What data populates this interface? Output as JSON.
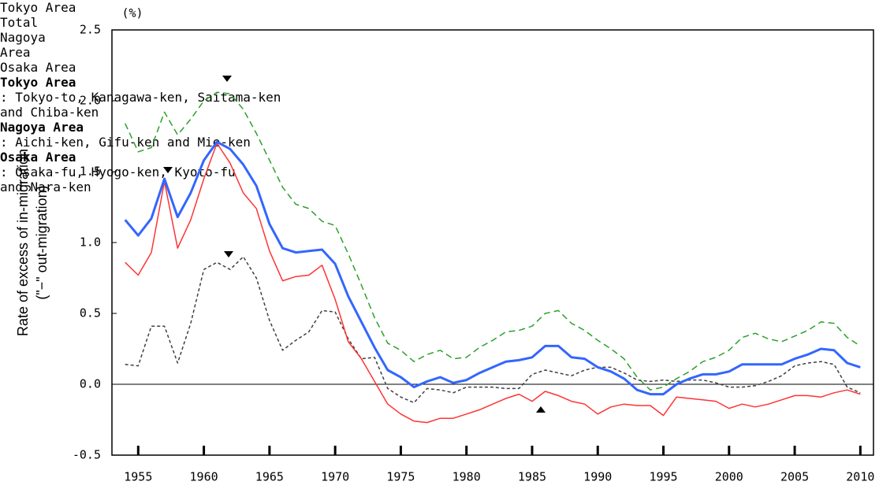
{
  "chart_data": {
    "type": "line",
    "unit_label": "(%)",
    "y_label": [
      "Rate of excess of in-migration",
      "(\"−\" out-migration)"
    ],
    "x": [
      1954,
      1955,
      1956,
      1957,
      1958,
      1959,
      1960,
      1961,
      1962,
      1963,
      1964,
      1965,
      1966,
      1967,
      1968,
      1969,
      1970,
      1971,
      1972,
      1973,
      1974,
      1975,
      1976,
      1977,
      1978,
      1979,
      1980,
      1981,
      1982,
      1983,
      1984,
      1985,
      1986,
      1987,
      1988,
      1989,
      1990,
      1991,
      1992,
      1993,
      1994,
      1995,
      1996,
      1997,
      1998,
      1999,
      2000,
      2001,
      2002,
      2003,
      2004,
      2005,
      2006,
      2007,
      2008,
      2009,
      2010
    ],
    "series": [
      {
        "name": "Tokyo Area",
        "color": "#2ca02c",
        "dash": "8,5",
        "width": 1.5,
        "values": [
          1.84,
          1.64,
          1.67,
          1.92,
          1.76,
          1.87,
          2.0,
          2.06,
          2.05,
          1.94,
          1.77,
          1.58,
          1.39,
          1.27,
          1.24,
          1.15,
          1.12,
          0.92,
          0.7,
          0.47,
          0.29,
          0.24,
          0.16,
          0.21,
          0.24,
          0.18,
          0.19,
          0.26,
          0.31,
          0.37,
          0.38,
          0.41,
          0.5,
          0.52,
          0.43,
          0.38,
          0.31,
          0.25,
          0.18,
          0.05,
          -0.04,
          -0.02,
          0.04,
          0.09,
          0.16,
          0.19,
          0.24,
          0.33,
          0.36,
          0.32,
          0.3,
          0.34,
          0.38,
          0.44,
          0.43,
          0.33,
          0.27
        ]
      },
      {
        "name": "Nagoya Area",
        "color": "#404040",
        "dash": "4,3",
        "width": 1.5,
        "values": [
          0.14,
          0.13,
          0.41,
          0.41,
          0.15,
          0.43,
          0.81,
          0.86,
          0.81,
          0.9,
          0.75,
          0.45,
          0.24,
          0.31,
          0.37,
          0.52,
          0.51,
          0.32,
          0.18,
          0.19,
          -0.03,
          -0.09,
          -0.13,
          -0.03,
          -0.04,
          -0.06,
          -0.02,
          -0.02,
          -0.02,
          -0.03,
          -0.03,
          0.07,
          0.1,
          0.08,
          0.06,
          0.1,
          0.12,
          0.12,
          0.08,
          0.03,
          0.02,
          0.03,
          0.02,
          0.03,
          0.03,
          0.01,
          -0.02,
          -0.02,
          -0.01,
          0.02,
          0.06,
          0.13,
          0.15,
          0.16,
          0.14,
          -0.02,
          -0.06
        ]
      },
      {
        "name": "Osaka Area",
        "color": "#ff3333",
        "dash": "none",
        "width": 1.5,
        "values": [
          0.86,
          0.77,
          0.93,
          1.43,
          0.96,
          1.16,
          1.45,
          1.7,
          1.56,
          1.35,
          1.24,
          0.94,
          0.73,
          0.76,
          0.77,
          0.84,
          0.6,
          0.3,
          0.18,
          0.02,
          -0.14,
          -0.21,
          -0.26,
          -0.27,
          -0.24,
          -0.24,
          -0.21,
          -0.18,
          -0.14,
          -0.1,
          -0.07,
          -0.12,
          -0.05,
          -0.08,
          -0.12,
          -0.14,
          -0.21,
          -0.16,
          -0.14,
          -0.15,
          -0.15,
          -0.22,
          -0.09,
          -0.1,
          -0.11,
          -0.12,
          -0.17,
          -0.14,
          -0.16,
          -0.14,
          -0.11,
          -0.08,
          -0.08,
          -0.09,
          -0.06,
          -0.04,
          -0.07
        ]
      },
      {
        "name": "Total",
        "color": "#3366ff",
        "dash": "none",
        "width": 3,
        "values": [
          1.16,
          1.05,
          1.17,
          1.45,
          1.18,
          1.35,
          1.58,
          1.71,
          1.66,
          1.55,
          1.4,
          1.13,
          0.96,
          0.93,
          0.94,
          0.95,
          0.85,
          0.62,
          0.44,
          0.26,
          0.1,
          0.05,
          -0.02,
          0.02,
          0.05,
          0.01,
          0.03,
          0.08,
          0.12,
          0.16,
          0.17,
          0.19,
          0.27,
          0.27,
          0.19,
          0.18,
          0.12,
          0.09,
          0.04,
          -0.04,
          -0.07,
          -0.07,
          0.0,
          0.04,
          0.07,
          0.07,
          0.09,
          0.14,
          0.14,
          0.14,
          0.14,
          0.18,
          0.21,
          0.25,
          0.24,
          0.15,
          0.12
        ]
      }
    ],
    "xlim": [
      1953,
      2011
    ],
    "xticks": [
      1955,
      1960,
      1965,
      1970,
      1975,
      1980,
      1985,
      1990,
      1995,
      2000,
      2005,
      2010
    ],
    "ylim": [
      -0.5,
      2.5
    ],
    "yticks": [
      -0.5,
      {
        "value": 0,
        "label": "0.0"
      },
      0.5,
      {
        "value": 1,
        "label": "1.0"
      },
      1.5,
      {
        "value": 2,
        "label": "2.0"
      },
      2.5
    ],
    "hline": 0,
    "notes": [
      {
        "name": "Tokyo Area",
        "lines": [
          ": Tokyo-to, Kanagawa-ken, Saitama-ken",
          "and Chiba-ken"
        ]
      },
      {
        "name": "Nagoya Area",
        "lines": [
          ": Aichi-ken, Gifu-ken and Mie-ken"
        ]
      },
      {
        "name": "Osaka Area",
        "lines": [
          ": Osaka-fu, Hyogo-ken, Kyoto-fu",
          "and Nara-ken"
        ]
      }
    ]
  }
}
